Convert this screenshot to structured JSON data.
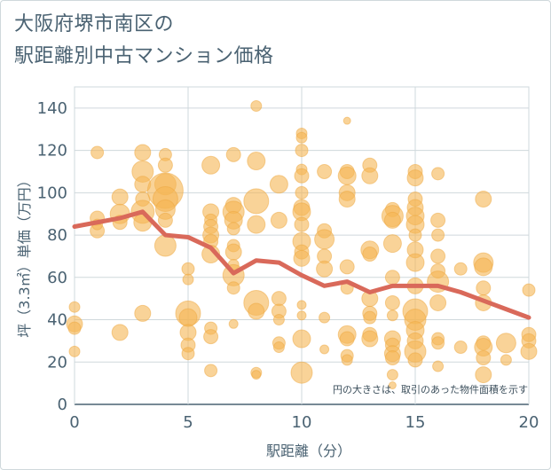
{
  "title_lines": [
    "大阪府堺市南区の",
    "駅距離別中古マンション価格"
  ],
  "chart_data": {
    "type": "scatter",
    "title": "大阪府堺市南区の駅距離別中古マンション価格",
    "xlabel": "駅距離（分）",
    "ylabel": "坪（3.3㎡）単価（万円）",
    "xlim": [
      0,
      20
    ],
    "ylim": [
      0,
      145
    ],
    "xticks": [
      0,
      5,
      10,
      15,
      20
    ],
    "yticks": [
      0,
      20,
      40,
      60,
      80,
      100,
      120,
      140
    ],
    "grid": true,
    "note": "円の大きさは、取引のあった物件面積を示す",
    "bubble_color": "#f5b553",
    "line_color": "#d9695a",
    "points": [
      [
        0,
        46,
        6
      ],
      [
        0,
        38,
        9
      ],
      [
        0,
        36,
        7
      ],
      [
        0,
        25,
        6
      ],
      [
        1,
        119,
        7
      ],
      [
        1,
        88,
        8
      ],
      [
        1,
        82,
        8
      ],
      [
        1,
        85,
        6
      ],
      [
        2,
        98,
        9
      ],
      [
        2,
        90,
        11
      ],
      [
        2,
        86,
        8
      ],
      [
        2,
        34,
        9
      ],
      [
        3,
        119,
        9
      ],
      [
        3,
        110,
        12
      ],
      [
        3,
        104,
        9
      ],
      [
        3,
        97,
        8
      ],
      [
        3,
        91,
        13
      ],
      [
        3,
        86,
        10
      ],
      [
        3,
        43,
        9
      ],
      [
        4,
        118,
        7
      ],
      [
        4,
        113,
        8
      ],
      [
        4,
        104,
        12
      ],
      [
        4,
        101,
        20
      ],
      [
        4,
        97,
        14
      ],
      [
        4,
        92,
        11
      ],
      [
        4,
        87,
        8
      ],
      [
        4,
        75,
        12
      ],
      [
        5,
        64,
        7
      ],
      [
        5,
        59,
        6
      ],
      [
        5,
        43,
        14
      ],
      [
        5,
        41,
        10
      ],
      [
        5,
        34,
        9
      ],
      [
        5,
        28,
        8
      ],
      [
        5,
        24,
        7
      ],
      [
        6,
        113,
        10
      ],
      [
        6,
        91,
        9
      ],
      [
        6,
        87,
        7
      ],
      [
        6,
        84,
        8
      ],
      [
        6,
        80,
        9
      ],
      [
        6,
        77,
        8
      ],
      [
        6,
        71,
        10
      ],
      [
        6,
        36,
        7
      ],
      [
        6,
        32,
        8
      ],
      [
        6,
        16,
        7
      ],
      [
        7,
        118,
        8
      ],
      [
        7,
        94,
        9
      ],
      [
        7,
        91,
        12
      ],
      [
        7,
        87,
        10
      ],
      [
        7,
        83,
        7
      ],
      [
        7,
        75,
        7
      ],
      [
        7,
        72,
        9
      ],
      [
        7,
        66,
        6
      ],
      [
        7,
        61,
        12
      ],
      [
        7,
        55,
        7
      ],
      [
        7,
        38,
        5
      ],
      [
        8,
        141,
        6
      ],
      [
        8,
        115,
        10
      ],
      [
        8,
        96,
        14
      ],
      [
        8,
        85,
        10
      ],
      [
        8,
        48,
        14
      ],
      [
        8,
        44,
        9
      ],
      [
        8,
        15,
        6
      ],
      [
        8,
        14,
        5
      ],
      [
        9,
        104,
        10
      ],
      [
        9,
        87,
        9
      ],
      [
        9,
        50,
        8
      ],
      [
        9,
        44,
        8
      ],
      [
        9,
        40,
        6
      ],
      [
        9,
        29,
        7
      ],
      [
        9,
        27,
        6
      ],
      [
        10,
        128,
        6
      ],
      [
        10,
        126,
        6
      ],
      [
        10,
        120,
        7
      ],
      [
        10,
        111,
        6
      ],
      [
        10,
        108,
        8
      ],
      [
        10,
        100,
        7
      ],
      [
        10,
        93,
        9
      ],
      [
        10,
        91,
        10
      ],
      [
        10,
        85,
        8
      ],
      [
        10,
        77,
        10
      ],
      [
        10,
        72,
        8
      ],
      [
        10,
        69,
        9
      ],
      [
        10,
        47,
        5
      ],
      [
        10,
        42,
        5
      ],
      [
        10,
        31,
        10
      ],
      [
        10,
        15,
        12
      ],
      [
        11,
        110,
        8
      ],
      [
        11,
        82,
        8
      ],
      [
        11,
        78,
        11
      ],
      [
        11,
        70,
        8
      ],
      [
        11,
        64,
        9
      ],
      [
        11,
        41,
        6
      ],
      [
        11,
        26,
        5
      ],
      [
        12,
        134,
        4
      ],
      [
        12,
        110,
        8
      ],
      [
        12,
        108,
        10
      ],
      [
        12,
        100,
        9
      ],
      [
        12,
        97,
        9
      ],
      [
        12,
        65,
        8
      ],
      [
        12,
        55,
        7
      ],
      [
        12,
        33,
        10
      ],
      [
        12,
        31,
        8
      ],
      [
        12,
        23,
        7
      ],
      [
        12,
        21,
        6
      ],
      [
        13,
        113,
        8
      ],
      [
        13,
        108,
        9
      ],
      [
        13,
        73,
        10
      ],
      [
        13,
        71,
        8
      ],
      [
        13,
        50,
        9
      ],
      [
        13,
        43,
        8
      ],
      [
        13,
        41,
        7
      ],
      [
        13,
        33,
        8
      ],
      [
        13,
        31,
        9
      ],
      [
        14,
        92,
        8
      ],
      [
        14,
        89,
        12
      ],
      [
        14,
        87,
        9
      ],
      [
        14,
        76,
        10
      ],
      [
        14,
        60,
        8
      ],
      [
        14,
        48,
        8
      ],
      [
        14,
        42,
        6
      ],
      [
        14,
        31,
        9
      ],
      [
        14,
        28,
        8
      ],
      [
        14,
        24,
        9
      ],
      [
        14,
        22,
        8
      ],
      [
        14,
        14,
        6
      ],
      [
        14,
        9,
        4
      ],
      [
        15,
        110,
        8
      ],
      [
        15,
        107,
        9
      ],
      [
        15,
        97,
        8
      ],
      [
        15,
        93,
        9
      ],
      [
        15,
        89,
        10
      ],
      [
        15,
        85,
        10
      ],
      [
        15,
        80,
        7
      ],
      [
        15,
        73,
        9
      ],
      [
        15,
        67,
        10
      ],
      [
        15,
        56,
        9
      ],
      [
        15,
        44,
        14
      ],
      [
        15,
        40,
        12
      ],
      [
        15,
        35,
        10
      ],
      [
        15,
        30,
        9
      ],
      [
        15,
        25,
        12
      ],
      [
        15,
        21,
        8
      ],
      [
        16,
        109,
        7
      ],
      [
        16,
        87,
        8
      ],
      [
        16,
        80,
        7
      ],
      [
        16,
        70,
        8
      ],
      [
        16,
        63,
        8
      ],
      [
        16,
        58,
        12
      ],
      [
        16,
        48,
        9
      ],
      [
        16,
        31,
        7
      ],
      [
        16,
        29,
        7
      ],
      [
        16,
        18,
        6
      ],
      [
        17,
        64,
        7
      ],
      [
        17,
        27,
        7
      ],
      [
        18,
        97,
        9
      ],
      [
        18,
        67,
        11
      ],
      [
        18,
        65,
        10
      ],
      [
        18,
        55,
        8
      ],
      [
        18,
        48,
        9
      ],
      [
        18,
        29,
        8
      ],
      [
        18,
        27,
        10
      ],
      [
        18,
        22,
        8
      ],
      [
        18,
        14,
        9
      ],
      [
        19,
        29,
        11
      ],
      [
        19,
        21,
        6
      ],
      [
        20,
        54,
        7
      ],
      [
        20,
        33,
        8
      ],
      [
        20,
        30,
        8
      ],
      [
        20,
        25,
        9
      ]
    ],
    "line": {
      "name": "",
      "x": [
        0,
        1,
        2,
        3,
        4,
        5,
        6,
        7,
        8,
        9,
        10,
        11,
        12,
        13,
        14,
        15,
        16,
        17,
        18,
        19,
        20
      ],
      "y": [
        84,
        86,
        88,
        91,
        80,
        79,
        74,
        62,
        68,
        67,
        61,
        56,
        58,
        53,
        56,
        56,
        56,
        53,
        49,
        45,
        41
      ]
    }
  }
}
